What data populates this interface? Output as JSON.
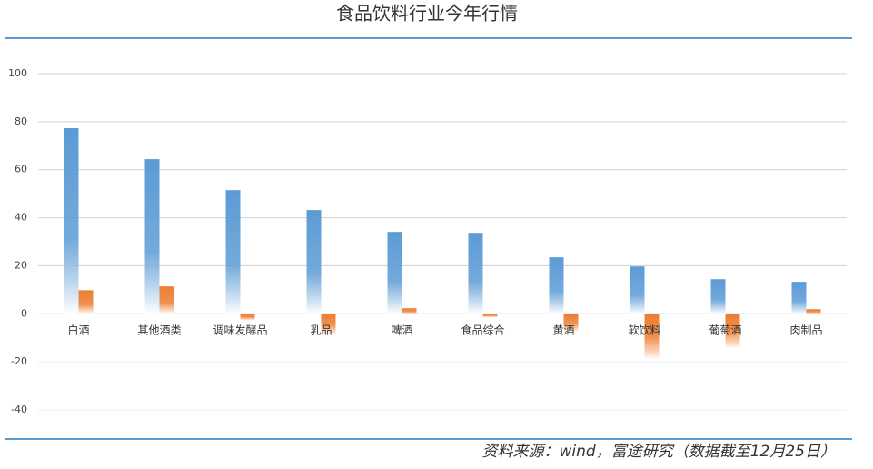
{
  "chart_data": {
    "type": "bar",
    "title": "食品饮料行业今年行情",
    "categories": [
      "白酒",
      "其他酒类",
      "调味发酵品",
      "乳品",
      "啤酒",
      "食品综合",
      "黄酒",
      "软饮料",
      "葡萄酒",
      "肉制品"
    ],
    "series": [
      {
        "color": "#5b9bd5",
        "values": [
          77.3,
          64.4,
          51.5,
          43.2,
          34.1,
          33.7,
          23.5,
          19.7,
          14.4,
          13.3
        ]
      },
      {
        "color": "#ed7d31",
        "values": [
          9.8,
          11.4,
          -2.7,
          -8.7,
          2.3,
          -1.5,
          -7.6,
          -19,
          -14.4,
          1.9
        ]
      }
    ],
    "ylim": [
      -40,
      100
    ],
    "yticks": [
      -40,
      -20,
      0,
      20,
      40,
      60,
      80,
      100
    ],
    "grid": true,
    "source": "资料来源：wind，富途研究（数据截至12月25日）"
  }
}
